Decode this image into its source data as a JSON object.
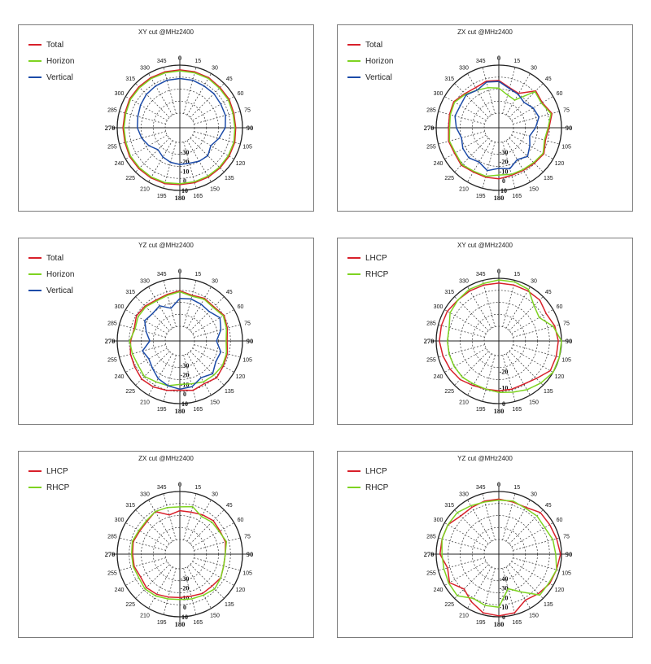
{
  "chart_data": [
    {
      "type": "polar",
      "title": "XY cut @MHz2400",
      "angles": [
        0,
        15,
        30,
        45,
        60,
        75,
        90,
        105,
        120,
        135,
        150,
        165,
        180,
        195,
        210,
        225,
        240,
        255,
        270,
        285,
        300,
        315,
        330,
        345
      ],
      "radial_ticks": [
        "-30",
        "-20",
        "-10",
        "0",
        "10"
      ],
      "radial_range": [
        -40,
        10
      ],
      "radial_tick_values": [
        -30,
        -20,
        -10,
        0,
        10
      ],
      "series": [
        {
          "name": "Total",
          "color": "#d8202a",
          "values": [
            5,
            5,
            5,
            4,
            4,
            3,
            3,
            4,
            4,
            4,
            4,
            4,
            4,
            5,
            5,
            5,
            5,
            4,
            4,
            4,
            5,
            5,
            5,
            5
          ]
        },
        {
          "name": "Horizon",
          "color": "#7ed321",
          "values": [
            4,
            4,
            4,
            3,
            3,
            2,
            2,
            3,
            3,
            3,
            3,
            3,
            3,
            4,
            4,
            4,
            4,
            3,
            3,
            3,
            4,
            4,
            4,
            4
          ]
        },
        {
          "name": "Vertical",
          "color": "#1c4ba8",
          "values": [
            -4,
            -4,
            -5,
            -5,
            -6,
            -6,
            -8,
            -13,
            -18,
            -14,
            -15,
            -17,
            -17,
            -18,
            -20,
            -23,
            -18,
            -14,
            -11,
            -10,
            -8,
            -6,
            -5,
            -4
          ]
        }
      ]
    },
    {
      "type": "polar",
      "title": "ZX cut @MHz2400",
      "angles": [
        0,
        15,
        30,
        45,
        60,
        75,
        90,
        105,
        120,
        135,
        150,
        165,
        180,
        195,
        210,
        225,
        240,
        255,
        270,
        285,
        300,
        315,
        330,
        345
      ],
      "radial_ticks": [
        "-30",
        "-20",
        "-10",
        "0",
        "10"
      ],
      "radial_range": [
        -40,
        10
      ],
      "radial_tick_values": [
        -30,
        -20,
        -10,
        0,
        10
      ],
      "series": [
        {
          "name": "Total",
          "color": "#d8202a",
          "values": [
            -6,
            -12,
            -14,
            -1,
            -3,
            2,
            -3,
            -5,
            -1,
            -3,
            -4,
            -4,
            -2,
            -2,
            -2,
            0,
            -2,
            -1,
            -3,
            -2,
            -1,
            -5,
            -7,
            -5
          ]
        },
        {
          "name": "Horizon",
          "color": "#7ed321",
          "values": [
            -14,
            -20,
            -22,
            -2,
            -4,
            1,
            -4,
            -6,
            -2,
            -4,
            -5,
            -5,
            -6,
            -3,
            -3,
            -1,
            -3,
            -2,
            -4,
            -3,
            -2,
            -6,
            -10,
            -12
          ]
        },
        {
          "name": "Vertical",
          "color": "#1c4ba8",
          "values": [
            -7,
            -13,
            -15,
            -18,
            -14,
            -12,
            -17,
            -22,
            -18,
            -13,
            -17,
            -11,
            -13,
            -9,
            -14,
            -11,
            -12,
            -15,
            -11,
            -8,
            -9,
            -7,
            -10,
            -6
          ]
        }
      ]
    },
    {
      "type": "polar",
      "title": "YZ cut @MHz2400",
      "angles": [
        0,
        15,
        30,
        45,
        60,
        75,
        90,
        105,
        120,
        135,
        150,
        165,
        180,
        195,
        210,
        225,
        240,
        255,
        270,
        285,
        300,
        315,
        330,
        345
      ],
      "radial_ticks": [
        "-30",
        "-20",
        "-10",
        "0",
        "10"
      ],
      "radial_range": [
        -40,
        10
      ],
      "radial_tick_values": [
        -30,
        -20,
        -10,
        0,
        10
      ],
      "series": [
        {
          "name": "Total",
          "color": "#d8202a",
          "values": [
            -3,
            -6,
            -4,
            -5,
            -2,
            -4,
            -6,
            -4,
            -3,
            -1,
            -4,
            -2,
            -4,
            -2,
            0,
            1,
            -1,
            -2,
            -4,
            -6,
            -3,
            -4,
            -6,
            -5
          ]
        },
        {
          "name": "Horizon",
          "color": "#7ed321",
          "values": [
            -4,
            -7,
            -5,
            -6,
            -3,
            -5,
            -7,
            -5,
            -4,
            -5,
            -6,
            -9,
            -10,
            -7,
            -6,
            -3,
            -5,
            -4,
            -3,
            -7,
            -5,
            -5,
            -7,
            -6
          ]
        },
        {
          "name": "Vertical",
          "color": "#1c4ba8",
          "values": [
            -11,
            -10,
            -11,
            -12,
            -7,
            -11,
            -17,
            -11,
            -12,
            -7,
            -11,
            -6,
            -5,
            -7,
            -10,
            -15,
            -18,
            -15,
            -24,
            -19,
            -13,
            -15,
            -13,
            -20
          ]
        }
      ]
    },
    {
      "type": "polar",
      "title": "XY cut @MHz2400",
      "angles": [
        0,
        15,
        30,
        45,
        60,
        75,
        90,
        105,
        120,
        135,
        150,
        165,
        180,
        195,
        210,
        225,
        240,
        255,
        270,
        285,
        300,
        315,
        330,
        345
      ],
      "radial_ticks": [
        "-20",
        "-10",
        "0"
      ],
      "radial_range": [
        -30,
        0
      ],
      "radial_tick_values": [
        -20,
        -10,
        0
      ],
      "series": [
        {
          "name": "LHCP",
          "color": "#d8202a",
          "values": [
            -3,
            -3,
            -3,
            -3,
            -5,
            -3,
            -2,
            -2,
            -2,
            -6,
            -8,
            -8,
            -8,
            -8,
            -7,
            -5,
            -4,
            -3,
            -2,
            -2,
            -2,
            -3,
            -3,
            -3
          ]
        },
        {
          "name": "RHCP",
          "color": "#7ed321",
          "values": [
            -1,
            -1,
            -2,
            -8,
            -10,
            -4,
            0,
            0,
            0,
            -2,
            -4,
            -6,
            -7,
            -8,
            -8,
            -7,
            -7,
            -7,
            -7,
            -7,
            -4,
            -3,
            -2,
            -2
          ]
        }
      ]
    },
    {
      "type": "polar",
      "title": "ZX cut @MHz2400",
      "angles": [
        0,
        15,
        30,
        45,
        60,
        75,
        90,
        105,
        120,
        135,
        150,
        165,
        180,
        195,
        210,
        225,
        240,
        255,
        270,
        285,
        300,
        315,
        330,
        345
      ],
      "radial_ticks": [
        "-30",
        "-20",
        "-10",
        "0",
        "10"
      ],
      "radial_range": [
        -40,
        10
      ],
      "radial_tick_values": [
        -30,
        -20,
        -10,
        0,
        10
      ],
      "series": [
        {
          "name": "LHCP",
          "color": "#d8202a",
          "values": [
            -10,
            -10,
            -8,
            -6,
            -7,
            -6,
            -8,
            -8,
            -6,
            -8,
            -8,
            -10,
            -10,
            -9,
            -7,
            -6,
            -8,
            -6,
            -6,
            -5,
            -7,
            -7,
            -4,
            -13
          ]
        },
        {
          "name": "RHCP",
          "color": "#7ed321",
          "values": [
            -6,
            -4,
            -10,
            -8,
            -8,
            -5,
            -8,
            -8,
            -6,
            -4,
            -6,
            -7,
            -8,
            -7,
            -5,
            -4,
            -6,
            -5,
            -5,
            -4,
            -6,
            -6,
            -4,
            -5
          ]
        }
      ]
    },
    {
      "type": "polar",
      "title": "YZ cut @MHz2400",
      "angles": [
        0,
        15,
        30,
        45,
        60,
        75,
        90,
        105,
        120,
        135,
        150,
        165,
        180,
        195,
        210,
        225,
        240,
        255,
        270,
        285,
        300,
        315,
        330,
        345
      ],
      "radial_ticks": [
        "-40",
        "-30",
        "-20",
        "-10",
        "0"
      ],
      "radial_range": [
        -50,
        0
      ],
      "radial_tick_values": [
        -40,
        -30,
        -20,
        -10,
        0
      ],
      "series": [
        {
          "name": "LHCP",
          "color": "#d8202a",
          "values": [
            -8,
            -9,
            -9,
            -4,
            -4,
            -3,
            -1,
            -3,
            -4,
            -7,
            -10,
            -2,
            -1,
            -2,
            -8,
            -14,
            -6,
            -10,
            -4,
            -4,
            -4,
            -9,
            -9,
            -8
          ]
        },
        {
          "name": "RHCP",
          "color": "#7ed321",
          "values": [
            -9,
            -8,
            -10,
            -9,
            -10,
            -7,
            -6,
            -3,
            -5,
            -5,
            -20,
            -28,
            -10,
            -10,
            -12,
            -4,
            -5,
            -6,
            -6,
            -4,
            -4,
            -4,
            -7,
            -9
          ]
        }
      ]
    }
  ]
}
